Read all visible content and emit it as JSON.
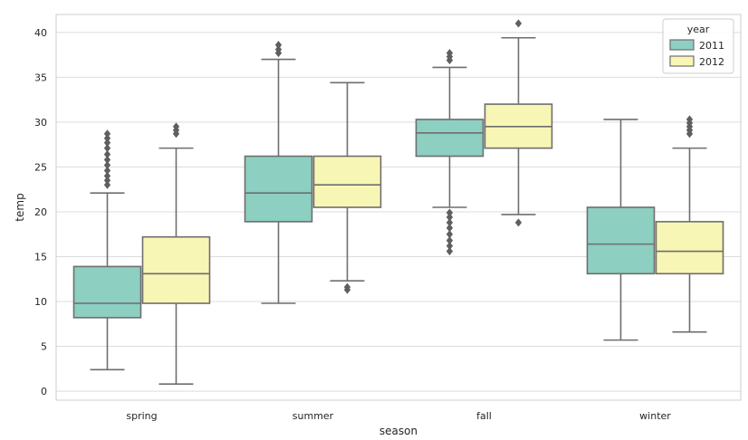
{
  "chart_data": {
    "type": "box",
    "xlabel": "season",
    "ylabel": "temp",
    "ylim": [
      -1,
      42
    ],
    "yticks": [
      0,
      5,
      10,
      15,
      20,
      25,
      30,
      35,
      40
    ],
    "grid": true,
    "legend": {
      "title": "year",
      "placement": "top-right"
    },
    "categories": [
      "spring",
      "summer",
      "fall",
      "winter"
    ],
    "series": [
      {
        "name": "2011",
        "color": "#8dcfc1",
        "boxes": [
          {
            "category": "spring",
            "whisker_low": 2.4,
            "q1": 8.2,
            "median": 9.8,
            "q3": 13.9,
            "whisker_high": 22.1,
            "outliers": [
              23.0,
              23.5,
              24.0,
              24.6,
              25.2,
              25.8,
              26.4,
              27.1,
              27.7,
              28.2,
              28.7
            ]
          },
          {
            "category": "summer",
            "whisker_low": 9.8,
            "q1": 18.9,
            "median": 22.1,
            "q3": 26.2,
            "whisker_high": 37.0,
            "outliers": [
              37.7,
              38.1,
              38.6
            ]
          },
          {
            "category": "fall",
            "whisker_low": 20.5,
            "q1": 26.2,
            "median": 28.8,
            "q3": 30.3,
            "whisker_high": 36.1,
            "outliers": [
              15.6,
              16.2,
              16.8,
              17.5,
              18.2,
              18.8,
              19.4,
              19.9,
              36.9,
              37.3,
              37.7
            ]
          },
          {
            "category": "winter",
            "whisker_low": 5.7,
            "q1": 13.1,
            "median": 16.4,
            "q3": 20.5,
            "whisker_high": 30.3,
            "outliers": []
          }
        ]
      },
      {
        "name": "2012",
        "color": "#f8f6b4",
        "boxes": [
          {
            "category": "spring",
            "whisker_low": 0.8,
            "q1": 9.8,
            "median": 13.1,
            "q3": 17.2,
            "whisker_high": 27.1,
            "outliers": [
              28.7,
              29.1,
              29.5
            ]
          },
          {
            "category": "summer",
            "whisker_low": 12.3,
            "q1": 20.5,
            "median": 23.0,
            "q3": 26.2,
            "whisker_high": 34.4,
            "outliers": [
              11.3,
              11.6
            ]
          },
          {
            "category": "fall",
            "whisker_low": 19.7,
            "q1": 27.1,
            "median": 29.5,
            "q3": 32.0,
            "whisker_high": 39.4,
            "outliers": [
              18.8,
              41.0
            ]
          },
          {
            "category": "winter",
            "whisker_low": 6.6,
            "q1": 13.1,
            "median": 15.6,
            "q3": 18.9,
            "whisker_high": 27.1,
            "outliers": [
              28.7,
              29.1,
              29.5,
              29.9,
              30.3
            ]
          }
        ]
      }
    ]
  }
}
